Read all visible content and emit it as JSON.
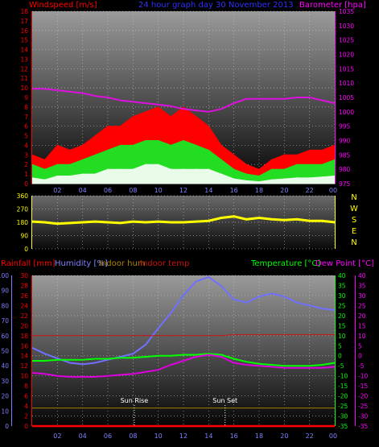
{
  "header": {
    "left": "Windspeed [m/s]",
    "center": "24 hour graph day  30 November 2013",
    "right": "Barometer [hpa]"
  },
  "colors": {
    "wind": "#ff0000",
    "gust": "#ff0000",
    "avg": "#22dd22",
    "lull": "#ffffff",
    "baro": "#dd11dd",
    "dir": "#ffff00",
    "rain": "#ff0000",
    "humidity": "#7070ff",
    "indoor_hum": "#a08000",
    "indoor_temp": "#cc1111",
    "temperature": "#00ff00",
    "dewpoint": "#dd00dd",
    "axis_left": "#ff0000",
    "axis_right": "#ff00ff",
    "axis_hum": "#8080ff",
    "axis_temp": "#00ff00"
  },
  "time_axis": [
    "02",
    "04",
    "06",
    "08",
    "10",
    "12",
    "14",
    "16",
    "18",
    "20",
    "22",
    "00"
  ],
  "compass": [
    "N",
    "W",
    "S",
    "E",
    "N"
  ],
  "bottom_labels": {
    "rainfall": "Rainfall [mm]",
    "humidity": "Humidity [%]",
    "indoor_hum": "Indoor hum",
    "indoor_temp": "Indoor temp",
    "temperature": "Temperature [°C]",
    "dewpoint": "Dew Point [°C]",
    "sunrise": "Sun Rise",
    "sunset": "Sun Set"
  },
  "chart_data": [
    {
      "type": "line",
      "title": "24 hour graph day  30 November 2013",
      "x": [
        0,
        1,
        2,
        3,
        4,
        5,
        6,
        7,
        8,
        9,
        10,
        11,
        12,
        13,
        14,
        15,
        16,
        17,
        18,
        19,
        20,
        21,
        22,
        23,
        24
      ],
      "x_tick_labels": [
        "02",
        "04",
        "06",
        "08",
        "10",
        "12",
        "14",
        "16",
        "18",
        "20",
        "22",
        "00"
      ],
      "y_left_label": "Windspeed [m/s]",
      "y_left_ticks": [
        0,
        1,
        2,
        3,
        4,
        5,
        6,
        7,
        8,
        9,
        10,
        11,
        12,
        13,
        14,
        15,
        16,
        17,
        18
      ],
      "ylim_left": [
        0,
        18
      ],
      "y_right_label": "Barometer [hpa]",
      "y_right_ticks": [
        975,
        980,
        985,
        990,
        995,
        1000,
        1005,
        1010,
        1015,
        1020,
        1025,
        1030,
        1035
      ],
      "ylim_right": [
        975,
        1035
      ],
      "series": [
        {
          "name": "gust",
          "axis": "left",
          "values": [
            3,
            2.5,
            4,
            3.5,
            4,
            5,
            6,
            6,
            7,
            7.5,
            8,
            7,
            8,
            7,
            6,
            4,
            3,
            2,
            1.5,
            2.5,
            3,
            3,
            3.5,
            3.5,
            4
          ]
        },
        {
          "name": "average",
          "axis": "left",
          "values": [
            2,
            1.5,
            2,
            2,
            2.5,
            3,
            3.5,
            4,
            4,
            4.5,
            4.5,
            4,
            4.5,
            4,
            3.5,
            2.5,
            1.5,
            1,
            0.8,
            1.5,
            1.5,
            2,
            2,
            2,
            2.5
          ]
        },
        {
          "name": "lull",
          "axis": "left",
          "values": [
            0.6,
            0.4,
            0.8,
            0.8,
            1,
            1,
            1.5,
            1.5,
            1.5,
            2,
            2,
            1.5,
            1.5,
            1.5,
            1.5,
            1,
            0.5,
            0.3,
            0.2,
            0.4,
            0.5,
            0.6,
            0.6,
            0.7,
            0.8
          ]
        },
        {
          "name": "barometer",
          "axis": "right",
          "values": [
            1008,
            1008,
            1007.5,
            1007,
            1006.5,
            1005.5,
            1005,
            1004,
            1003.5,
            1003,
            1002.5,
            1002,
            1001,
            1000.5,
            1000,
            1001,
            1003,
            1004.5,
            1004.5,
            1004.5,
            1004.5,
            1005,
            1005,
            1004,
            1003
          ]
        }
      ]
    },
    {
      "type": "line",
      "x": [
        0,
        1,
        2,
        3,
        4,
        5,
        6,
        7,
        8,
        9,
        10,
        11,
        12,
        13,
        14,
        15,
        16,
        17,
        18,
        19,
        20,
        21,
        22,
        23,
        24
      ],
      "y_ticks": [
        0,
        90,
        180,
        270,
        360
      ],
      "ylim": [
        0,
        360
      ],
      "series": [
        {
          "name": "wind_direction",
          "values": [
            185,
            180,
            170,
            175,
            180,
            185,
            180,
            175,
            185,
            180,
            185,
            180,
            180,
            185,
            190,
            210,
            220,
            200,
            210,
            200,
            195,
            200,
            190,
            190,
            180
          ]
        }
      ]
    },
    {
      "type": "line",
      "x": [
        0,
        1,
        2,
        3,
        4,
        5,
        6,
        7,
        8,
        9,
        10,
        11,
        12,
        13,
        14,
        15,
        16,
        17,
        18,
        19,
        20,
        21,
        22,
        23,
        24
      ],
      "x_tick_labels": [
        "02",
        "04",
        "06",
        "08",
        "10",
        "12",
        "14",
        "16",
        "18",
        "20",
        "22",
        "00"
      ],
      "y_rain_ticks": [
        0,
        2,
        4,
        6,
        8,
        10,
        12,
        14,
        16,
        18,
        20,
        22,
        24,
        26,
        28,
        30
      ],
      "ylim_rain": [
        0,
        30
      ],
      "y_hum_ticks": [
        0,
        10,
        20,
        30,
        40,
        50,
        60,
        70,
        80,
        90,
        100
      ],
      "ylim_hum": [
        0,
        100
      ],
      "y_temp_ticks": [
        -35,
        -30,
        -25,
        -20,
        -15,
        -10,
        -5,
        0,
        5,
        10,
        15,
        20,
        25,
        30,
        35,
        40
      ],
      "ylim_temp": [
        -35,
        40
      ],
      "annotations": [
        {
          "label": "Sun Rise",
          "x": 8.1
        },
        {
          "label": "Sun Set",
          "x": 15.3
        }
      ],
      "series": [
        {
          "name": "Rainfall",
          "axis": "rain",
          "values": [
            0,
            0,
            0,
            0,
            0,
            0,
            0,
            0,
            0,
            0,
            0,
            0,
            0,
            0,
            0,
            0,
            0,
            0,
            0,
            0,
            0,
            0,
            0,
            0,
            0
          ]
        },
        {
          "name": "Humidity",
          "axis": "hum",
          "values": [
            52,
            48,
            45,
            42,
            41,
            42,
            44,
            46,
            48,
            54,
            65,
            75,
            87,
            96,
            99,
            93,
            84,
            82,
            86,
            88,
            86,
            82,
            80,
            78,
            77
          ]
        },
        {
          "name": "Indoor hum",
          "axis": "hum",
          "values": [
            12,
            12,
            12,
            12,
            12,
            12,
            12,
            12,
            12,
            12,
            12,
            12,
            12,
            12,
            12,
            12,
            12,
            12,
            12,
            12,
            12,
            12,
            12,
            12,
            12
          ]
        },
        {
          "name": "Indoor temp",
          "axis": "temp",
          "values": [
            10,
            10,
            10,
            10,
            10,
            10,
            10,
            10,
            10,
            10,
            10,
            10,
            10,
            10,
            10,
            10,
            10.5,
            10.5,
            10.5,
            10.5,
            10.5,
            10.5,
            10.5,
            10.5,
            10.5
          ]
        },
        {
          "name": "Temperature",
          "axis": "temp",
          "values": [
            -2.5,
            -2.5,
            -2,
            -2,
            -2,
            -1.5,
            -1.5,
            -1,
            -1,
            -0.5,
            0,
            0,
            0.5,
            0.5,
            1,
            0.5,
            -1.5,
            -3,
            -4,
            -4.5,
            -5,
            -5,
            -5,
            -4.5,
            -3.5
          ]
        },
        {
          "name": "Dew Point",
          "axis": "temp",
          "values": [
            -8.5,
            -9,
            -10,
            -10.5,
            -10.5,
            -10.5,
            -10,
            -9.5,
            -9,
            -8,
            -7,
            -4.5,
            -2.5,
            -0.5,
            0.5,
            -0.5,
            -3.5,
            -4.5,
            -5,
            -5.5,
            -6,
            -6,
            -6,
            -6,
            -5.5
          ]
        }
      ]
    }
  ]
}
